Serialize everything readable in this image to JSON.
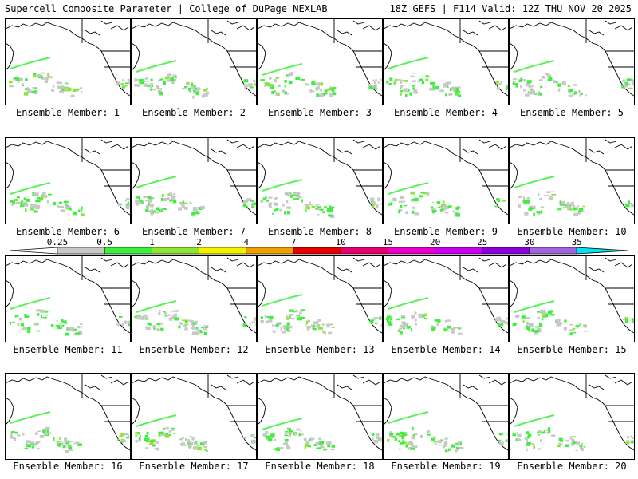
{
  "header": {
    "title": "Supercell Composite Parameter | College of DuPage NEXLAB",
    "run_info": "18Z GEFS | F114 Valid: 12Z THU NOV 20 2025"
  },
  "colorbar": {
    "labels": [
      "0.25",
      "0.5",
      "1",
      "2",
      "4",
      "7",
      "10",
      "15",
      "20",
      "25",
      "30",
      "35"
    ],
    "colors": [
      "#c8c8c8",
      "#3cf03c",
      "#8ce632",
      "#f0f000",
      "#f0a000",
      "#e60000",
      "#e6006e",
      "#e600c8",
      "#c800f0",
      "#8c00dc",
      "#a064dc",
      "#00e6f0"
    ]
  },
  "panels": [
    {
      "label": "Ensemble Member: 1"
    },
    {
      "label": "Ensemble Member: 2"
    },
    {
      "label": "Ensemble Member: 3"
    },
    {
      "label": "Ensemble Member: 4"
    },
    {
      "label": "Ensemble Member: 5"
    },
    {
      "label": "Ensemble Member: 6"
    },
    {
      "label": "Ensemble Member: 7"
    },
    {
      "label": "Ensemble Member: 8"
    },
    {
      "label": "Ensemble Member: 9"
    },
    {
      "label": "Ensemble Member: 10"
    },
    {
      "label": "Ensemble Member: 11"
    },
    {
      "label": "Ensemble Member: 12"
    },
    {
      "label": "Ensemble Member: 13"
    },
    {
      "label": "Ensemble Member: 14"
    },
    {
      "label": "Ensemble Member: 15"
    },
    {
      "label": "Ensemble Member: 16"
    },
    {
      "label": "Ensemble Member: 17"
    },
    {
      "label": "Ensemble Member: 18"
    },
    {
      "label": "Ensemble Member: 19"
    },
    {
      "label": "Ensemble Member: 20"
    }
  ]
}
